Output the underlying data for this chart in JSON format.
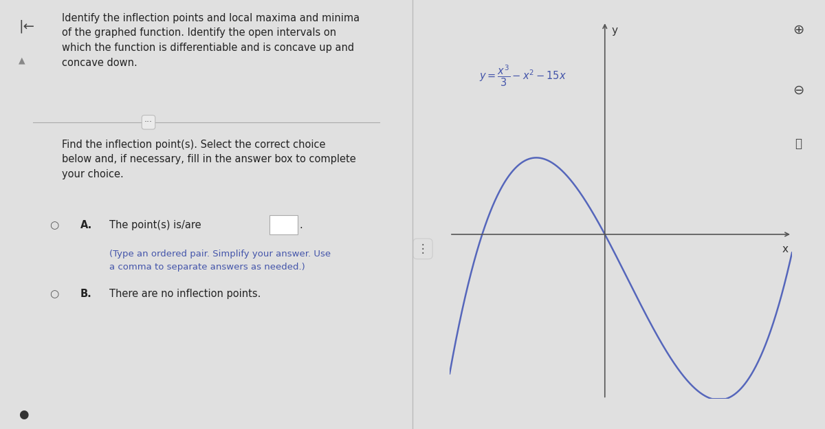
{
  "bg_color": "#e0e0e0",
  "left_panel_bg": "#ebebeb",
  "right_panel_bg": "#e8e8e8",
  "title_text": "Identify the inflection points and local maxima and minima\nof the graphed function. Identify the open intervals on\nwhich the function is differentiable and is concave up and\nconcave down.",
  "question_text": "Find the inflection point(s). Select the correct choice\nbelow and, if necessary, fill in the answer box to complete\nyour choice.",
  "choice_a_text": "The point(s) is/are",
  "choice_a_sub": "(Type an ordered pair. Simplify your answer. Use\na comma to separate answers as needed.)",
  "choice_b_text": "There are no inflection points.",
  "curve_color": "#5566bb",
  "axis_color": "#555555",
  "text_color": "#222222",
  "blue_text_color": "#4455aa",
  "icon_color": "#444444",
  "divider_color": "#aaaaaa",
  "x_range": [
    -6.8,
    8.2
  ],
  "y_range": [
    -58,
    75
  ]
}
